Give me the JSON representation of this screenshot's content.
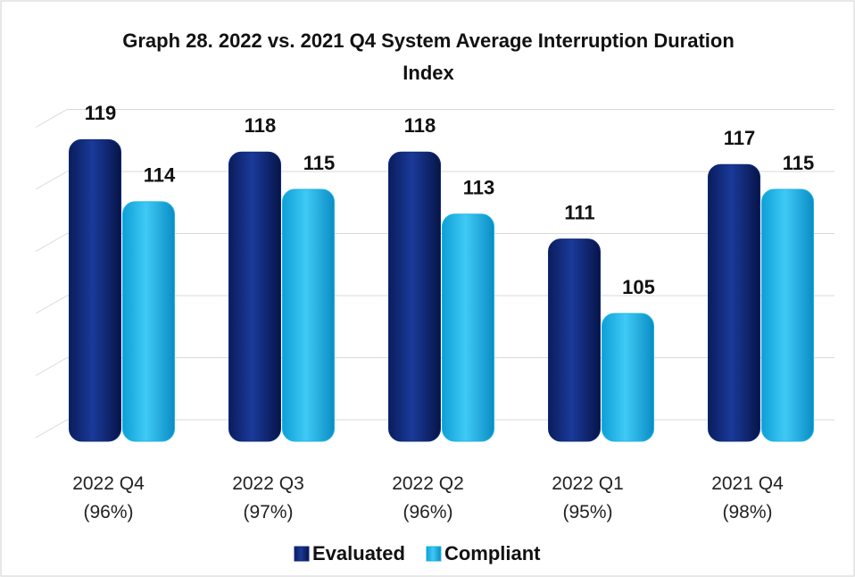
{
  "chart_data": {
    "type": "bar",
    "title": "Graph 28. 2022 vs. 2021 Q4 System Average Interruption Duration Index",
    "categories": [
      "2022 Q4\n(96%)",
      "2022 Q3\n(97%)",
      "2022 Q2\n(96%)",
      "2022 Q1\n(95%)",
      "2021 Q4\n(98%)"
    ],
    "series": [
      {
        "name": "Evaluated",
        "color": "#0f2a7a",
        "values": [
          119,
          118,
          118,
          111,
          117
        ]
      },
      {
        "name": "Compliant",
        "color": "#1bb3e6",
        "values": [
          114,
          115,
          113,
          105,
          115
        ]
      }
    ],
    "ylim": [
      95,
      120
    ],
    "yticks": [
      95,
      100,
      105,
      110,
      115,
      120
    ],
    "grid": true,
    "legend": "bottom"
  }
}
